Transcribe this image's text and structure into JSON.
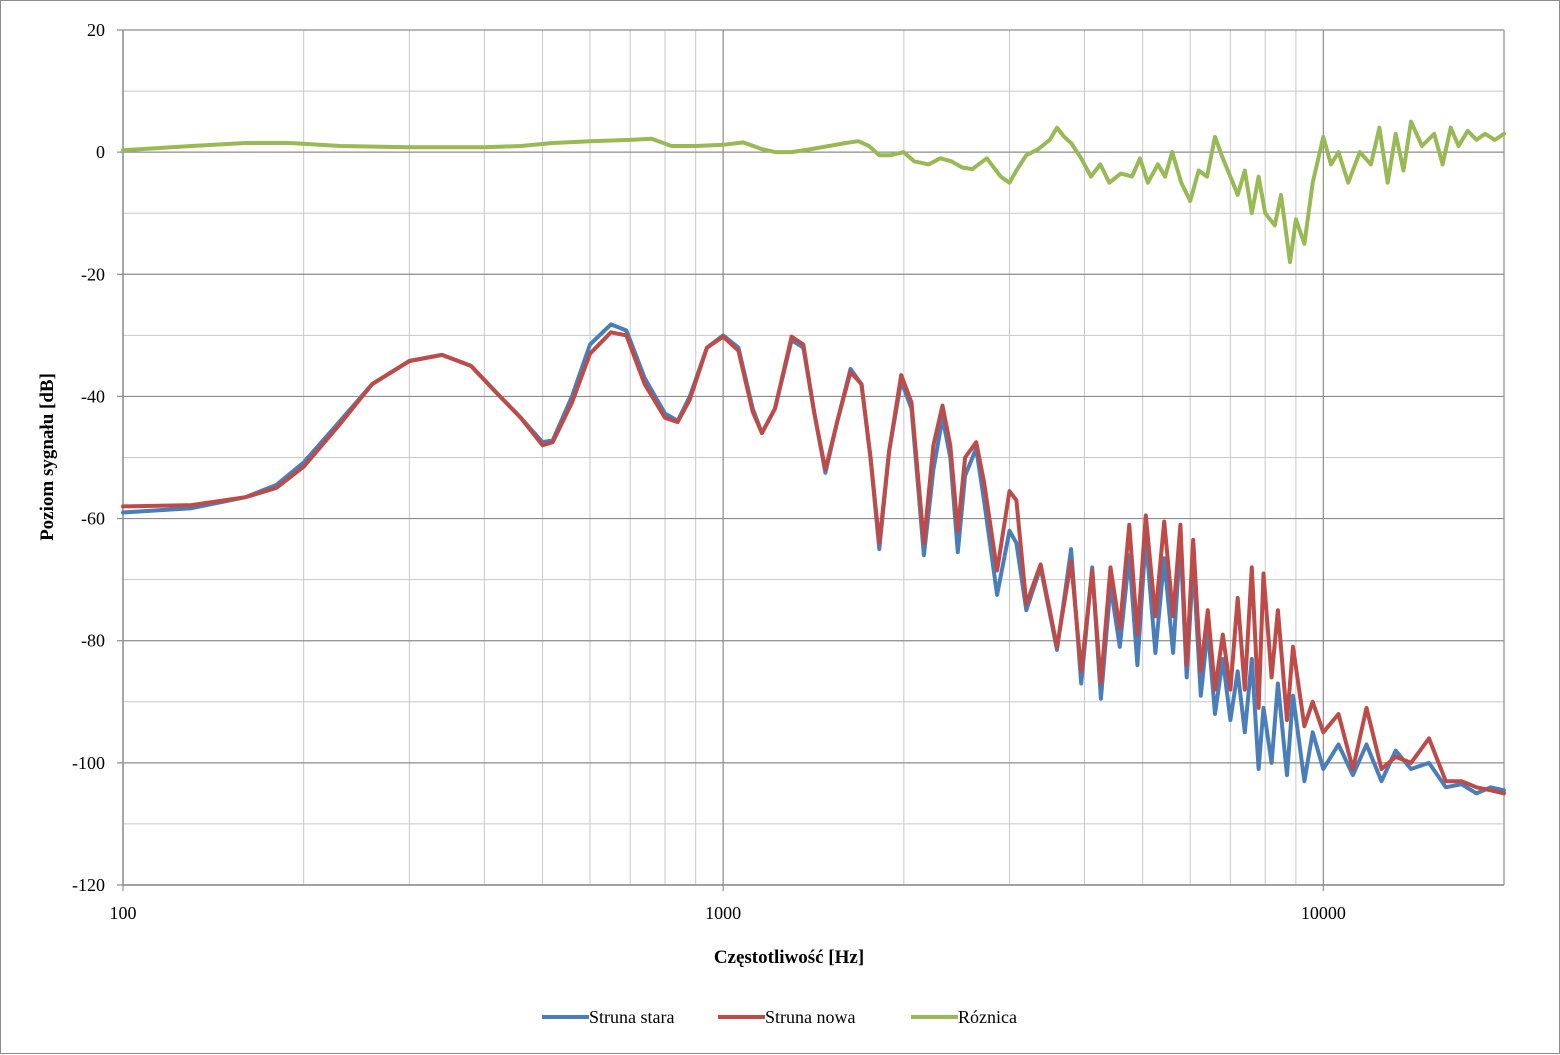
{
  "chart_data": {
    "type": "line",
    "title": "",
    "xlabel": "Częstotliwość [Hz]",
    "ylabel": "Poziom sygnału [dB]",
    "x_scale": "log",
    "xlim": [
      100,
      20000
    ],
    "ylim": [
      -120,
      20
    ],
    "x_ticks": [
      100,
      1000,
      10000
    ],
    "x_tick_labels": [
      "100",
      "1000",
      "10000"
    ],
    "y_ticks": [
      -120,
      -100,
      -80,
      -60,
      -40,
      -20,
      0,
      20
    ],
    "y_tick_labels": [
      "-120",
      "-100",
      "-80",
      "-60",
      "-40",
      "-20",
      "0",
      "20"
    ],
    "grid": true,
    "legend_position": "bottom",
    "series": [
      {
        "name": "Struna stara",
        "color": "#4a7ebb",
        "points": [
          [
            100,
            -59
          ],
          [
            130,
            -58.3
          ],
          [
            160,
            -56.5
          ],
          [
            180,
            -54.5
          ],
          [
            200,
            -50.8
          ],
          [
            230,
            -44
          ],
          [
            260,
            -38
          ],
          [
            300,
            -34.2
          ],
          [
            340,
            -33.2
          ],
          [
            380,
            -35
          ],
          [
            420,
            -39.5
          ],
          [
            460,
            -43.5
          ],
          [
            500,
            -47.5
          ],
          [
            520,
            -47.2
          ],
          [
            560,
            -40
          ],
          [
            600,
            -31.5
          ],
          [
            650,
            -28.2
          ],
          [
            690,
            -29.2
          ],
          [
            740,
            -37
          ],
          [
            800,
            -42.8
          ],
          [
            840,
            -44
          ],
          [
            880,
            -40
          ],
          [
            940,
            -32
          ],
          [
            1000,
            -30
          ],
          [
            1060,
            -32
          ],
          [
            1120,
            -42
          ],
          [
            1160,
            -46
          ],
          [
            1220,
            -42
          ],
          [
            1300,
            -30.8
          ],
          [
            1360,
            -32
          ],
          [
            1420,
            -43
          ],
          [
            1480,
            -52.5
          ],
          [
            1550,
            -44
          ],
          [
            1630,
            -35.5
          ],
          [
            1700,
            -38
          ],
          [
            1760,
            -50
          ],
          [
            1820,
            -65
          ],
          [
            1890,
            -49
          ],
          [
            1980,
            -37.5
          ],
          [
            2060,
            -42
          ],
          [
            2160,
            -66
          ],
          [
            2240,
            -52
          ],
          [
            2320,
            -43.5
          ],
          [
            2390,
            -50
          ],
          [
            2460,
            -65.5
          ],
          [
            2530,
            -53
          ],
          [
            2640,
            -48.5
          ],
          [
            2720,
            -57
          ],
          [
            2860,
            -72.5
          ],
          [
            3000,
            -62
          ],
          [
            3080,
            -64
          ],
          [
            3200,
            -75
          ],
          [
            3380,
            -68
          ],
          [
            3600,
            -81.5
          ],
          [
            3800,
            -65
          ],
          [
            3950,
            -87
          ],
          [
            4120,
            -68
          ],
          [
            4260,
            -89.5
          ],
          [
            4420,
            -71
          ],
          [
            4580,
            -81
          ],
          [
            4750,
            -66
          ],
          [
            4900,
            -84
          ],
          [
            5060,
            -63
          ],
          [
            5250,
            -82
          ],
          [
            5430,
            -66.5
          ],
          [
            5620,
            -82
          ],
          [
            5780,
            -63.5
          ],
          [
            5920,
            -86
          ],
          [
            6070,
            -67
          ],
          [
            6250,
            -89
          ],
          [
            6420,
            -78
          ],
          [
            6600,
            -92
          ],
          [
            6800,
            -83
          ],
          [
            7000,
            -93
          ],
          [
            7200,
            -85
          ],
          [
            7400,
            -95
          ],
          [
            7600,
            -83
          ],
          [
            7800,
            -101
          ],
          [
            7950,
            -91
          ],
          [
            8200,
            -100
          ],
          [
            8400,
            -87
          ],
          [
            8700,
            -102
          ],
          [
            8900,
            -89
          ],
          [
            9300,
            -103
          ],
          [
            9600,
            -95
          ],
          [
            10000,
            -101
          ],
          [
            10600,
            -97
          ],
          [
            11200,
            -102
          ],
          [
            11800,
            -97
          ],
          [
            12500,
            -103
          ],
          [
            13200,
            -98
          ],
          [
            14000,
            -101
          ],
          [
            15000,
            -100
          ],
          [
            16000,
            -104
          ],
          [
            17000,
            -103.5
          ],
          [
            18000,
            -105
          ],
          [
            19000,
            -104
          ],
          [
            20000,
            -104.5
          ]
        ]
      },
      {
        "name": "Struna nowa",
        "color": "#be4b48",
        "points": [
          [
            100,
            -58
          ],
          [
            130,
            -57.8
          ],
          [
            160,
            -56.5
          ],
          [
            180,
            -55
          ],
          [
            200,
            -51.5
          ],
          [
            230,
            -44.5
          ],
          [
            260,
            -38
          ],
          [
            300,
            -34.2
          ],
          [
            340,
            -33.2
          ],
          [
            380,
            -35
          ],
          [
            420,
            -39.5
          ],
          [
            460,
            -43.5
          ],
          [
            500,
            -48
          ],
          [
            520,
            -47.5
          ],
          [
            560,
            -41
          ],
          [
            600,
            -33
          ],
          [
            650,
            -29.5
          ],
          [
            690,
            -30
          ],
          [
            740,
            -38
          ],
          [
            800,
            -43.5
          ],
          [
            840,
            -44.2
          ],
          [
            880,
            -40.5
          ],
          [
            940,
            -32
          ],
          [
            1000,
            -30.2
          ],
          [
            1060,
            -32.5
          ],
          [
            1120,
            -42.5
          ],
          [
            1160,
            -46
          ],
          [
            1220,
            -42
          ],
          [
            1300,
            -30.2
          ],
          [
            1360,
            -31.5
          ],
          [
            1420,
            -43
          ],
          [
            1480,
            -52
          ],
          [
            1550,
            -44
          ],
          [
            1630,
            -36
          ],
          [
            1700,
            -38
          ],
          [
            1760,
            -50
          ],
          [
            1820,
            -64
          ],
          [
            1890,
            -49
          ],
          [
            1980,
            -36.5
          ],
          [
            2060,
            -41
          ],
          [
            2160,
            -64
          ],
          [
            2240,
            -48
          ],
          [
            2320,
            -41.5
          ],
          [
            2390,
            -48
          ],
          [
            2460,
            -62
          ],
          [
            2530,
            -50
          ],
          [
            2640,
            -47.5
          ],
          [
            2720,
            -54
          ],
          [
            2860,
            -68.5
          ],
          [
            3000,
            -55.5
          ],
          [
            3080,
            -57
          ],
          [
            3200,
            -74
          ],
          [
            3380,
            -67.5
          ],
          [
            3600,
            -81
          ],
          [
            3800,
            -67
          ],
          [
            3950,
            -85
          ],
          [
            4120,
            -68.5
          ],
          [
            4260,
            -87
          ],
          [
            4420,
            -68
          ],
          [
            4580,
            -78
          ],
          [
            4750,
            -61
          ],
          [
            4900,
            -79
          ],
          [
            5060,
            -59.5
          ],
          [
            5250,
            -76
          ],
          [
            5430,
            -60.5
          ],
          [
            5620,
            -76
          ],
          [
            5780,
            -61
          ],
          [
            5920,
            -84
          ],
          [
            6070,
            -63.5
          ],
          [
            6250,
            -85
          ],
          [
            6420,
            -75
          ],
          [
            6600,
            -88
          ],
          [
            6800,
            -79
          ],
          [
            7000,
            -88
          ],
          [
            7200,
            -73
          ],
          [
            7400,
            -88
          ],
          [
            7600,
            -68
          ],
          [
            7800,
            -91
          ],
          [
            7950,
            -69
          ],
          [
            8200,
            -86
          ],
          [
            8400,
            -75
          ],
          [
            8700,
            -93
          ],
          [
            8900,
            -81
          ],
          [
            9300,
            -94
          ],
          [
            9600,
            -90
          ],
          [
            10000,
            -95
          ],
          [
            10600,
            -92
          ],
          [
            11200,
            -101
          ],
          [
            11800,
            -91
          ],
          [
            12500,
            -101
          ],
          [
            13200,
            -99
          ],
          [
            14000,
            -100
          ],
          [
            15000,
            -96
          ],
          [
            16000,
            -103
          ],
          [
            17000,
            -103
          ],
          [
            18000,
            -104
          ],
          [
            19000,
            -104.5
          ],
          [
            20000,
            -105
          ]
        ]
      },
      {
        "name": "Róznica",
        "color": "#98b954",
        "points": [
          [
            100,
            0.3
          ],
          [
            130,
            1
          ],
          [
            160,
            1.5
          ],
          [
            190,
            1.5
          ],
          [
            230,
            1
          ],
          [
            300,
            0.8
          ],
          [
            400,
            0.8
          ],
          [
            460,
            1
          ],
          [
            520,
            1.5
          ],
          [
            600,
            1.8
          ],
          [
            700,
            2
          ],
          [
            760,
            2.2
          ],
          [
            820,
            1
          ],
          [
            900,
            1
          ],
          [
            1000,
            1.2
          ],
          [
            1080,
            1.6
          ],
          [
            1160,
            0.5
          ],
          [
            1220,
            0
          ],
          [
            1300,
            0
          ],
          [
            1400,
            0.5
          ],
          [
            1500,
            1
          ],
          [
            1600,
            1.5
          ],
          [
            1680,
            1.8
          ],
          [
            1750,
            1
          ],
          [
            1820,
            -0.5
          ],
          [
            1900,
            -0.5
          ],
          [
            2000,
            0
          ],
          [
            2080,
            -1.5
          ],
          [
            2200,
            -2
          ],
          [
            2300,
            -1
          ],
          [
            2400,
            -1.5
          ],
          [
            2500,
            -2.5
          ],
          [
            2600,
            -2.8
          ],
          [
            2750,
            -1
          ],
          [
            2900,
            -4
          ],
          [
            3000,
            -5
          ],
          [
            3080,
            -3
          ],
          [
            3200,
            -0.5
          ],
          [
            3350,
            0.5
          ],
          [
            3500,
            2
          ],
          [
            3600,
            4
          ],
          [
            3700,
            2.5
          ],
          [
            3800,
            1.5
          ],
          [
            3950,
            -1
          ],
          [
            4100,
            -4
          ],
          [
            4250,
            -2
          ],
          [
            4400,
            -5
          ],
          [
            4600,
            -3.5
          ],
          [
            4800,
            -4
          ],
          [
            4950,
            -1
          ],
          [
            5100,
            -5
          ],
          [
            5300,
            -2
          ],
          [
            5450,
            -4
          ],
          [
            5600,
            0
          ],
          [
            5800,
            -5
          ],
          [
            6000,
            -8
          ],
          [
            6200,
            -3
          ],
          [
            6400,
            -4
          ],
          [
            6600,
            2.5
          ],
          [
            6800,
            -1
          ],
          [
            7000,
            -4
          ],
          [
            7200,
            -7
          ],
          [
            7400,
            -3
          ],
          [
            7600,
            -10
          ],
          [
            7800,
            -4
          ],
          [
            8000,
            -10
          ],
          [
            8300,
            -12
          ],
          [
            8500,
            -7
          ],
          [
            8800,
            -18
          ],
          [
            9000,
            -11
          ],
          [
            9300,
            -15
          ],
          [
            9600,
            -5
          ],
          [
            10000,
            2.5
          ],
          [
            10300,
            -2
          ],
          [
            10600,
            0
          ],
          [
            11000,
            -5
          ],
          [
            11500,
            0
          ],
          [
            12000,
            -2
          ],
          [
            12400,
            4
          ],
          [
            12800,
            -5
          ],
          [
            13200,
            3
          ],
          [
            13600,
            -3
          ],
          [
            14000,
            5
          ],
          [
            14600,
            1
          ],
          [
            15300,
            3
          ],
          [
            15800,
            -2
          ],
          [
            16300,
            4
          ],
          [
            16800,
            1
          ],
          [
            17400,
            3.5
          ],
          [
            18000,
            2
          ],
          [
            18600,
            3
          ],
          [
            19300,
            2
          ],
          [
            20000,
            3
          ]
        ]
      }
    ]
  }
}
